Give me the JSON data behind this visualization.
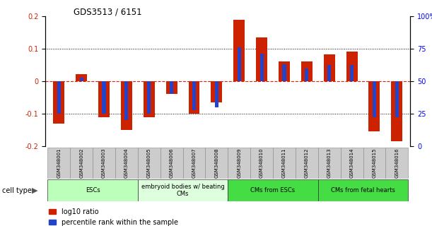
{
  "title": "GDS3513 / 6151",
  "samples": [
    "GSM348001",
    "GSM348002",
    "GSM348003",
    "GSM348004",
    "GSM348005",
    "GSM348006",
    "GSM348007",
    "GSM348008",
    "GSM348009",
    "GSM348010",
    "GSM348011",
    "GSM348012",
    "GSM348013",
    "GSM348014",
    "GSM348015",
    "GSM348016"
  ],
  "log10_ratio": [
    -0.13,
    0.022,
    -0.11,
    -0.15,
    -0.11,
    -0.04,
    -0.1,
    -0.065,
    0.19,
    0.135,
    0.06,
    0.062,
    0.082,
    0.092,
    -0.155,
    -0.185
  ],
  "percentile_rank": [
    -0.1,
    0.01,
    -0.1,
    -0.12,
    -0.1,
    -0.04,
    -0.09,
    -0.08,
    0.105,
    0.085,
    0.052,
    0.04,
    0.05,
    0.05,
    -0.11,
    -0.11
  ],
  "bar_color_red": "#cc2200",
  "bar_color_blue": "#2244cc",
  "ylim": [
    -0.2,
    0.2
  ],
  "right_ylim": [
    0,
    100
  ],
  "right_yticks": [
    0,
    25,
    50,
    75,
    100
  ],
  "left_yticks": [
    -0.2,
    -0.1,
    0,
    0.1,
    0.2
  ],
  "hline_dotted_vals": [
    -0.1,
    0.1
  ],
  "hline_dashed_val": 0.0,
  "cell_type_groups": [
    {
      "label": "ESCs",
      "start": 0,
      "end": 4,
      "color": "#bbffbb"
    },
    {
      "label": "embryoid bodies w/ beating\nCMs",
      "start": 4,
      "end": 8,
      "color": "#ddffdd"
    },
    {
      "label": "CMs from ESCs",
      "start": 8,
      "end": 12,
      "color": "#44dd44"
    },
    {
      "label": "CMs from fetal hearts",
      "start": 12,
      "end": 16,
      "color": "#44dd44"
    }
  ],
  "legend_red": "log10 ratio",
  "legend_blue": "percentile rank within the sample",
  "cell_type_label": "cell type",
  "bar_width": 0.5
}
